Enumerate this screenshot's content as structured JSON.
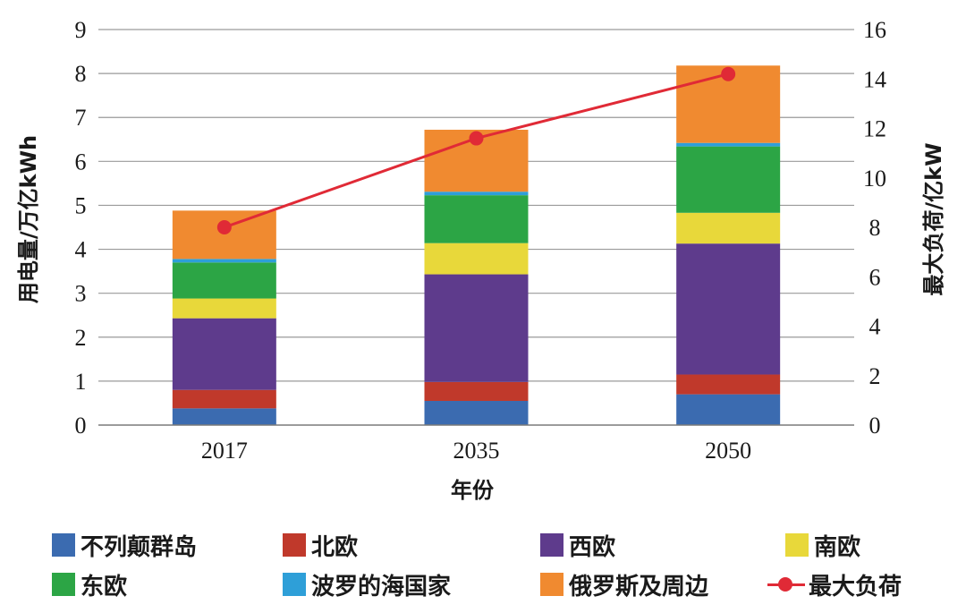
{
  "chart_data": {
    "type": "bar",
    "stacked": true,
    "categories": [
      "2017",
      "2035",
      "2050"
    ],
    "xlabel": "年份",
    "ylabel": "用电量/万亿kWh",
    "y2label": "最大负荷/亿kW",
    "ylim": [
      0,
      9
    ],
    "yticks": [
      0,
      1,
      2,
      3,
      4,
      5,
      6,
      7,
      8,
      9
    ],
    "y2lim": [
      0,
      16
    ],
    "y2ticks": [
      0,
      2,
      4,
      6,
      8,
      10,
      12,
      14,
      16
    ],
    "grid": true,
    "legend_position": "bottom",
    "series": [
      {
        "name": "不列颠群岛",
        "color": "#3b6bb0",
        "values": [
          0.38,
          0.55,
          0.7
        ]
      },
      {
        "name": "北欧",
        "color": "#c0392b",
        "values": [
          0.42,
          0.43,
          0.45
        ]
      },
      {
        "name": "西欧",
        "color": "#5e3b8c",
        "values": [
          1.63,
          2.45,
          2.98
        ]
      },
      {
        "name": "南欧",
        "color": "#e8d83a",
        "values": [
          0.45,
          0.71,
          0.7
        ]
      },
      {
        "name": "东欧",
        "color": "#2ca545",
        "values": [
          0.82,
          1.09,
          1.51
        ]
      },
      {
        "name": "波罗的海国家",
        "color": "#2e9fd8",
        "values": [
          0.08,
          0.08,
          0.08
        ]
      },
      {
        "name": "俄罗斯及周边",
        "color": "#f08a30",
        "values": [
          1.1,
          1.41,
          1.76
        ]
      }
    ],
    "line": {
      "name": "最大负荷",
      "color": "#e02a36",
      "axis": "right",
      "values": [
        8.0,
        11.6,
        14.2
      ]
    }
  }
}
